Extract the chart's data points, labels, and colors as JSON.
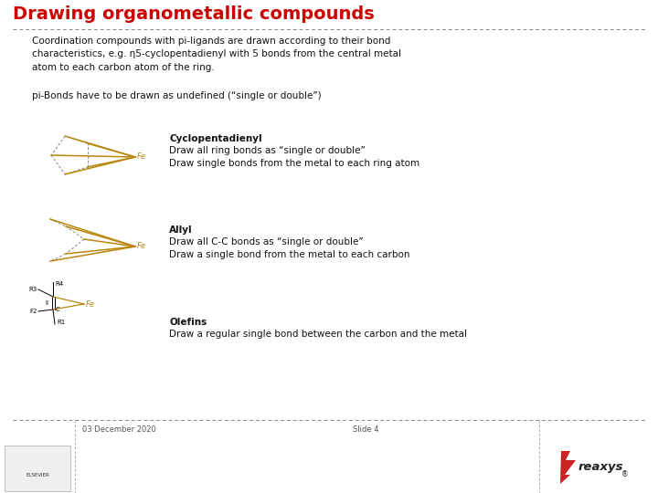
{
  "title": "Drawing organometallic compounds",
  "title_color": "#CC0000",
  "title_fontsize": 14,
  "bg_color": "#FFFFFF",
  "separator_color": "#888888",
  "body_text_1": "Coordination compounds with pi-ligands are drawn according to their bond\ncharacteristics, e.g. η5-cyclopentadienyl with 5 bonds from the central metal\natom to each carbon atom of the ring.",
  "body_text_2": "pi-Bonds have to be drawn as undefined (“single or double”)",
  "section1_bold": "Cyclopentadienyl",
  "section1_text": "Draw all ring bonds as “single or double”\nDraw single bonds from the metal to each ring atom",
  "section2_bold": "Allyl",
  "section2_text": "Draw all C-C bonds as “single or double”\nDraw a single bond from the metal to each carbon",
  "section3_bold": "Olefins",
  "section3_text": "Draw a regular single bond between the carbon and the metal",
  "footer_date": "03 December 2020",
  "footer_slide": "Slide 4",
  "bond_color": "#B8860B",
  "dashed_color": "#888888",
  "metal_color": "#B8860B",
  "text_color": "#111111",
  "font_size_body": 7.5,
  "font_size_section_bold": 7.5,
  "font_size_small": 5.0
}
